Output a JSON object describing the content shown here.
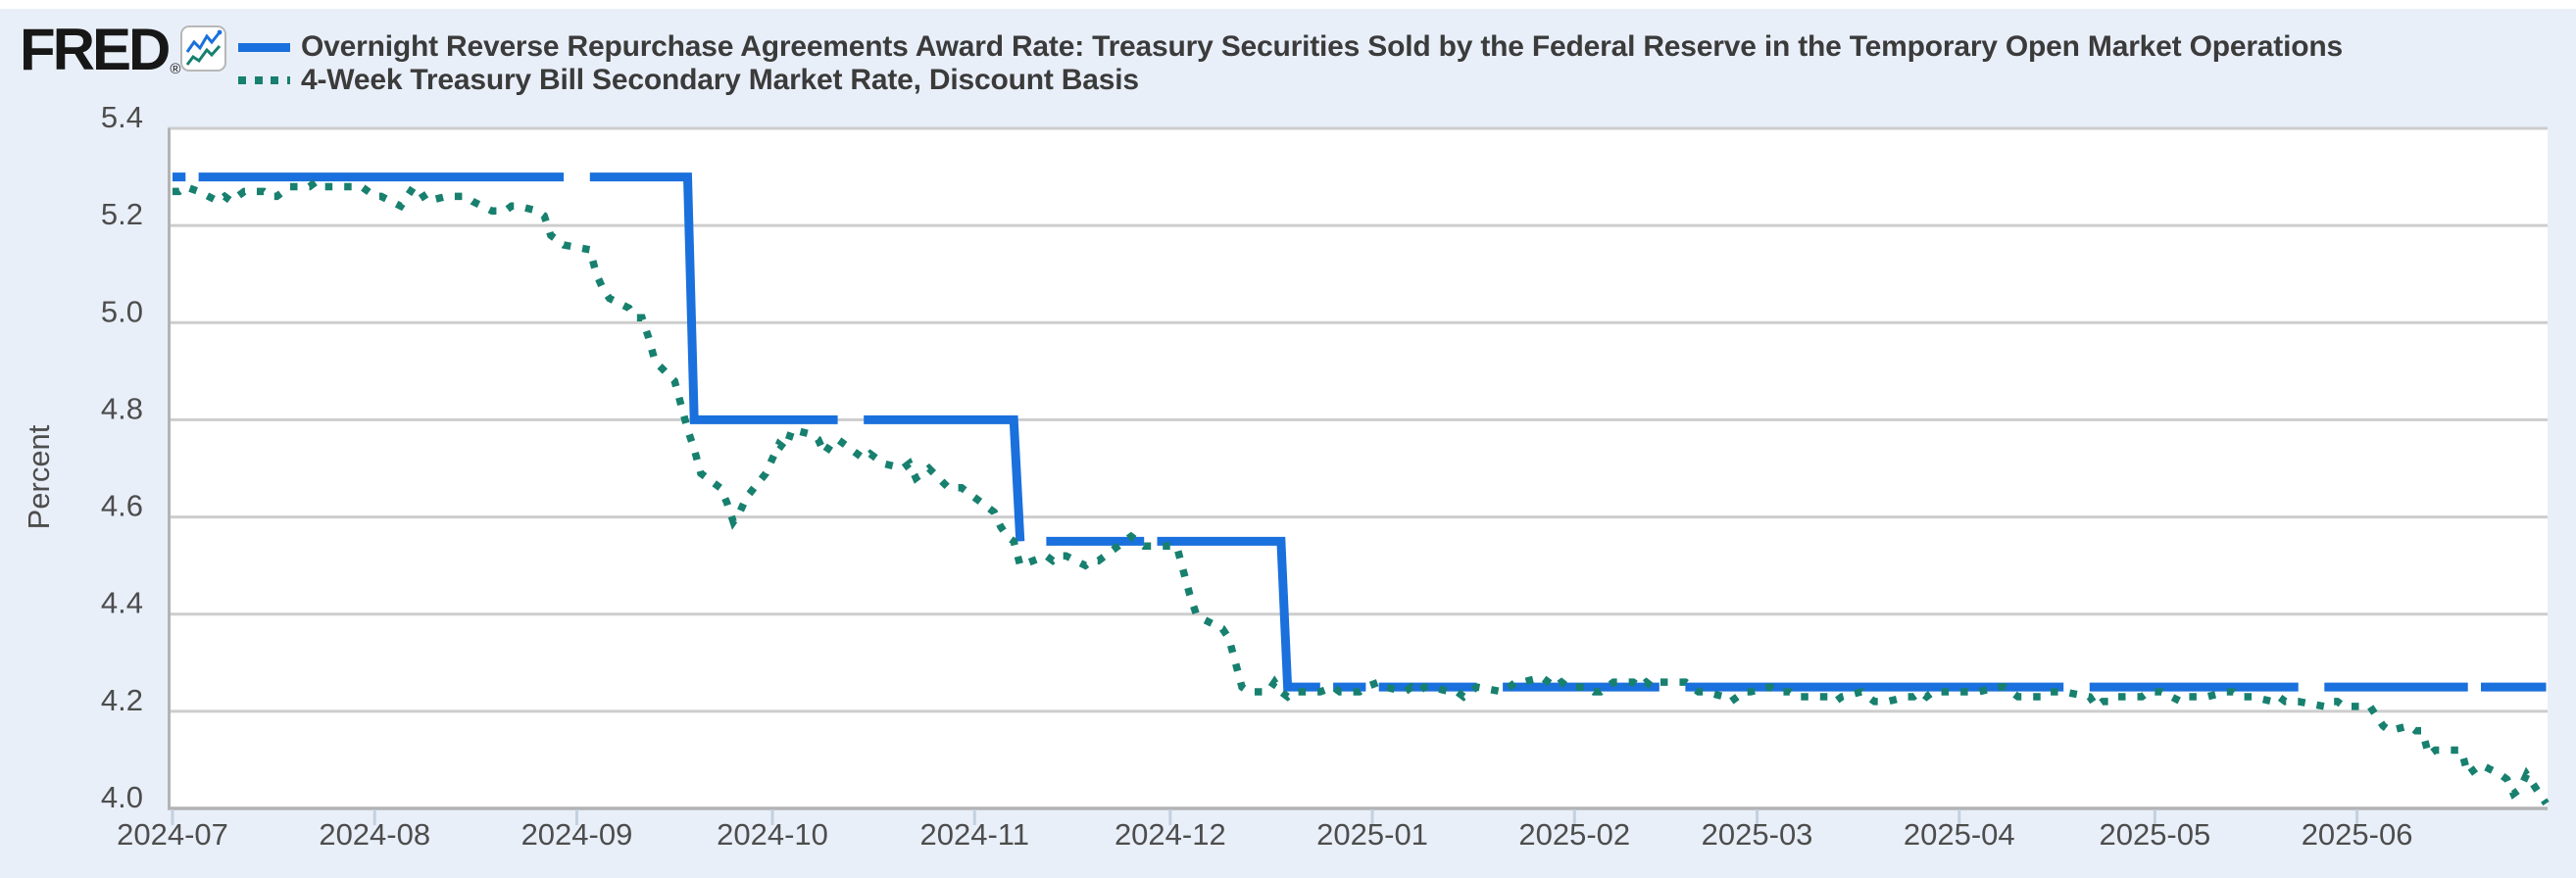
{
  "header": {
    "logo_text": "FRED",
    "registered_mark": "®"
  },
  "legend": [
    {
      "label": "Overnight Reverse Repurchase Agreements Award Rate: Treasury Securities Sold by the Federal Reserve in the Temporary Open Market Operations",
      "color": "#1a70dc",
      "style": "solid"
    },
    {
      "label": "4-Week Treasury Bill Secondary Market Rate, Discount Basis",
      "color": "#17806e",
      "style": "dotted"
    }
  ],
  "colors": {
    "background": "#e9eff9",
    "plot_background": "#ffffff",
    "gridline": "#cdcdcd",
    "axis_border": "#b3b3b3",
    "tick_mark": "#c3d0e1",
    "axis_text": "#4d4d4d",
    "series_blue": "#1a70dc",
    "series_teal": "#17806e"
  },
  "chart_data": {
    "type": "line",
    "title": "",
    "xlabel": "",
    "ylabel": "Percent",
    "ylim": [
      4.0,
      5.4
    ],
    "grid": true,
    "legend_position": "top-left",
    "x_unit": "days since 2024-07-01 (business-day series)",
    "x_start_date": "2024-07-01",
    "x_end_date": "2025-06-30",
    "y_ticks": [
      {
        "v": 4.0,
        "label": "4.0"
      },
      {
        "v": 4.2,
        "label": "4.2"
      },
      {
        "v": 4.4,
        "label": "4.4"
      },
      {
        "v": 4.6,
        "label": "4.6"
      },
      {
        "v": 4.8,
        "label": "4.8"
      },
      {
        "v": 5.0,
        "label": "5.0"
      },
      {
        "v": 5.2,
        "label": "5.2"
      },
      {
        "v": 5.4,
        "label": "5.4"
      }
    ],
    "x_ticks": [
      {
        "d": 0,
        "label": "2024-07"
      },
      {
        "d": 31,
        "label": "2024-08"
      },
      {
        "d": 62,
        "label": "2024-09"
      },
      {
        "d": 92,
        "label": "2024-10"
      },
      {
        "d": 123,
        "label": "2024-11"
      },
      {
        "d": 153,
        "label": "2024-12"
      },
      {
        "d": 184,
        "label": "2025-01"
      },
      {
        "d": 215,
        "label": "2025-02"
      },
      {
        "d": 243,
        "label": "2025-03"
      },
      {
        "d": 274,
        "label": "2025-04"
      },
      {
        "d": 304,
        "label": "2025-05"
      },
      {
        "d": 335,
        "label": "2025-06"
      }
    ],
    "series": [
      {
        "name": "Overnight Reverse Repurchase Agreements Award Rate: Treasury Securities Sold by the Federal Reserve in the Temporary Open Market Operations",
        "color": "#1a70dc",
        "style": "solid",
        "line_width": 9,
        "values_note": "step series 5.30 to 2024-09-18, 4.80 to 2024-11-07, 4.55 to 2024-12-18, 4.25 after; gaps are market holidays",
        "segments": [
          [
            [
              0,
              5.3
            ],
            [
              2,
              5.3
            ]
          ],
          [
            [
              4,
              5.3
            ],
            [
              60,
              5.3
            ]
          ],
          [
            [
              64,
              5.3
            ],
            [
              79,
              5.3
            ],
            [
              80,
              4.8
            ],
            [
              102,
              4.8
            ]
          ],
          [
            [
              106,
              4.8
            ],
            [
              129,
              4.8
            ],
            [
              130,
              4.55
            ]
          ],
          [
            [
              134,
              4.55
            ],
            [
              149,
              4.55
            ]
          ],
          [
            [
              151,
              4.55
            ],
            [
              170,
              4.55
            ],
            [
              171,
              4.25
            ],
            [
              176,
              4.25
            ]
          ],
          [
            [
              178,
              4.25
            ],
            [
              183,
              4.25
            ]
          ],
          [
            [
              185,
              4.25
            ],
            [
              200,
              4.25
            ]
          ],
          [
            [
              204,
              4.25
            ],
            [
              228,
              4.25
            ]
          ],
          [
            [
              232,
              4.25
            ],
            [
              290,
              4.25
            ]
          ],
          [
            [
              294,
              4.25
            ],
            [
              326,
              4.25
            ]
          ],
          [
            [
              330,
              4.25
            ],
            [
              352,
              4.25
            ]
          ],
          [
            [
              354,
              4.25
            ],
            [
              364,
              4.25
            ]
          ]
        ]
      },
      {
        "name": "4-Week Treasury Bill Secondary Market Rate, Discount Basis",
        "color": "#17806e",
        "style": "dotted",
        "dot_size": 7.5,
        "points": [
          [
            0,
            5.27
          ],
          [
            1,
            5.27
          ],
          [
            2,
            5.28
          ],
          [
            4,
            5.27
          ],
          [
            7,
            5.25
          ],
          [
            8,
            5.26
          ],
          [
            9,
            5.25
          ],
          [
            10,
            5.26
          ],
          [
            11,
            5.27
          ],
          [
            14,
            5.27
          ],
          [
            15,
            5.26
          ],
          [
            16,
            5.26
          ],
          [
            17,
            5.27
          ],
          [
            18,
            5.28
          ],
          [
            21,
            5.28
          ],
          [
            22,
            5.29
          ],
          [
            23,
            5.28
          ],
          [
            24,
            5.28
          ],
          [
            25,
            5.28
          ],
          [
            28,
            5.28
          ],
          [
            29,
            5.28
          ],
          [
            30,
            5.27
          ],
          [
            31,
            5.26
          ],
          [
            32,
            5.26
          ],
          [
            35,
            5.24
          ],
          [
            36,
            5.26
          ],
          [
            37,
            5.28
          ],
          [
            38,
            5.27
          ],
          [
            39,
            5.25
          ],
          [
            42,
            5.26
          ],
          [
            43,
            5.26
          ],
          [
            44,
            5.26
          ],
          [
            45,
            5.26
          ],
          [
            46,
            5.25
          ],
          [
            49,
            5.23
          ],
          [
            50,
            5.23
          ],
          [
            51,
            5.23
          ],
          [
            52,
            5.24
          ],
          [
            53,
            5.24
          ],
          [
            56,
            5.23
          ],
          [
            57,
            5.22
          ],
          [
            58,
            5.18
          ],
          [
            59,
            5.17
          ],
          [
            60,
            5.16
          ],
          [
            64,
            5.15
          ],
          [
            65,
            5.1
          ],
          [
            66,
            5.07
          ],
          [
            67,
            5.05
          ],
          [
            70,
            5.03
          ],
          [
            71,
            5.01
          ],
          [
            72,
            5.01
          ],
          [
            73,
            4.97
          ],
          [
            74,
            4.92
          ],
          [
            77,
            4.88
          ],
          [
            78,
            4.83
          ],
          [
            79,
            4.78
          ],
          [
            80,
            4.74
          ],
          [
            81,
            4.69
          ],
          [
            84,
            4.66
          ],
          [
            85,
            4.63
          ],
          [
            86,
            4.59
          ],
          [
            87,
            4.61
          ],
          [
            88,
            4.64
          ],
          [
            91,
            4.69
          ],
          [
            92,
            4.72
          ],
          [
            93,
            4.75
          ],
          [
            94,
            4.74
          ],
          [
            95,
            4.78
          ],
          [
            98,
            4.77
          ],
          [
            99,
            4.76
          ],
          [
            100,
            4.73
          ],
          [
            101,
            4.75
          ],
          [
            102,
            4.76
          ],
          [
            106,
            4.72
          ],
          [
            107,
            4.73
          ],
          [
            108,
            4.72
          ],
          [
            109,
            4.71
          ],
          [
            112,
            4.7
          ],
          [
            113,
            4.71
          ],
          [
            114,
            4.68
          ],
          [
            115,
            4.69
          ],
          [
            116,
            4.7
          ],
          [
            119,
            4.66
          ],
          [
            120,
            4.66
          ],
          [
            121,
            4.66
          ],
          [
            122,
            4.65
          ],
          [
            123,
            4.64
          ],
          [
            126,
            4.61
          ],
          [
            127,
            4.58
          ],
          [
            128,
            4.56
          ],
          [
            129,
            4.55
          ],
          [
            130,
            4.5
          ],
          [
            134,
            4.52
          ],
          [
            135,
            4.51
          ],
          [
            136,
            4.52
          ],
          [
            137,
            4.52
          ],
          [
            140,
            4.5
          ],
          [
            141,
            4.51
          ],
          [
            142,
            4.51
          ],
          [
            143,
            4.52
          ],
          [
            144,
            4.53
          ],
          [
            147,
            4.56
          ],
          [
            148,
            4.55
          ],
          [
            149,
            4.54
          ],
          [
            151,
            4.54
          ],
          [
            154,
            4.54
          ],
          [
            155,
            4.49
          ],
          [
            156,
            4.44
          ],
          [
            157,
            4.4
          ],
          [
            158,
            4.39
          ],
          [
            161,
            4.37
          ],
          [
            162,
            4.35
          ],
          [
            163,
            4.3
          ],
          [
            164,
            4.25
          ],
          [
            165,
            4.24
          ],
          [
            168,
            4.24
          ],
          [
            169,
            4.26
          ],
          [
            170,
            4.24
          ],
          [
            171,
            4.23
          ],
          [
            172,
            4.24
          ],
          [
            175,
            4.24
          ],
          [
            176,
            4.24
          ],
          [
            178,
            4.25
          ],
          [
            179,
            4.24
          ],
          [
            182,
            4.24
          ],
          [
            183,
            4.25
          ],
          [
            185,
            4.26
          ],
          [
            186,
            4.25
          ],
          [
            189,
            4.24
          ],
          [
            190,
            4.25
          ],
          [
            191,
            4.24
          ],
          [
            192,
            4.25
          ],
          [
            193,
            4.25
          ],
          [
            196,
            4.24
          ],
          [
            197,
            4.24
          ],
          [
            198,
            4.23
          ],
          [
            199,
            4.24
          ],
          [
            200,
            4.25
          ],
          [
            204,
            4.24
          ],
          [
            205,
            4.25
          ],
          [
            206,
            4.26
          ],
          [
            207,
            4.26
          ],
          [
            210,
            4.27
          ],
          [
            211,
            4.26
          ],
          [
            212,
            4.25
          ],
          [
            213,
            4.26
          ],
          [
            214,
            4.25
          ],
          [
            217,
            4.25
          ],
          [
            218,
            4.24
          ],
          [
            219,
            4.24
          ],
          [
            220,
            4.25
          ],
          [
            221,
            4.26
          ],
          [
            224,
            4.26
          ],
          [
            225,
            4.25
          ],
          [
            226,
            4.26
          ],
          [
            227,
            4.25
          ],
          [
            228,
            4.26
          ],
          [
            232,
            4.26
          ],
          [
            233,
            4.25
          ],
          [
            234,
            4.24
          ],
          [
            235,
            4.24
          ],
          [
            238,
            4.23
          ],
          [
            239,
            4.22
          ],
          [
            240,
            4.23
          ],
          [
            241,
            4.24
          ],
          [
            242,
            4.24
          ],
          [
            245,
            4.25
          ],
          [
            246,
            4.24
          ],
          [
            247,
            4.24
          ],
          [
            248,
            4.24
          ],
          [
            249,
            4.23
          ],
          [
            252,
            4.23
          ],
          [
            253,
            4.23
          ],
          [
            254,
            4.23
          ],
          [
            255,
            4.22
          ],
          [
            256,
            4.23
          ],
          [
            259,
            4.24
          ],
          [
            260,
            4.23
          ],
          [
            261,
            4.22
          ],
          [
            262,
            4.22
          ],
          [
            263,
            4.22
          ],
          [
            266,
            4.23
          ],
          [
            267,
            4.23
          ],
          [
            268,
            4.24
          ],
          [
            269,
            4.23
          ],
          [
            270,
            4.24
          ],
          [
            273,
            4.24
          ],
          [
            274,
            4.24
          ],
          [
            275,
            4.24
          ],
          [
            276,
            4.24
          ],
          [
            277,
            4.24
          ],
          [
            280,
            4.25
          ],
          [
            281,
            4.25
          ],
          [
            282,
            4.24
          ],
          [
            283,
            4.23
          ],
          [
            284,
            4.23
          ],
          [
            287,
            4.23
          ],
          [
            288,
            4.24
          ],
          [
            289,
            4.24
          ],
          [
            290,
            4.24
          ],
          [
            294,
            4.23
          ],
          [
            295,
            4.21
          ],
          [
            296,
            4.22
          ],
          [
            297,
            4.22
          ],
          [
            298,
            4.23
          ],
          [
            301,
            4.23
          ],
          [
            302,
            4.23
          ],
          [
            303,
            4.24
          ],
          [
            304,
            4.24
          ],
          [
            305,
            4.24
          ],
          [
            308,
            4.22
          ],
          [
            309,
            4.23
          ],
          [
            310,
            4.23
          ],
          [
            311,
            4.23
          ],
          [
            312,
            4.23
          ],
          [
            315,
            4.24
          ],
          [
            316,
            4.24
          ],
          [
            317,
            4.23
          ],
          [
            318,
            4.23
          ],
          [
            319,
            4.23
          ],
          [
            322,
            4.22
          ],
          [
            323,
            4.23
          ],
          [
            324,
            4.22
          ],
          [
            325,
            4.22
          ],
          [
            326,
            4.22
          ],
          [
            330,
            4.21
          ],
          [
            331,
            4.22
          ],
          [
            332,
            4.22
          ],
          [
            333,
            4.21
          ],
          [
            336,
            4.21
          ],
          [
            337,
            4.21
          ],
          [
            338,
            4.19
          ],
          [
            339,
            4.17
          ],
          [
            340,
            4.16
          ],
          [
            343,
            4.17
          ],
          [
            344,
            4.16
          ],
          [
            345,
            4.16
          ],
          [
            346,
            4.11
          ],
          [
            347,
            4.12
          ],
          [
            350,
            4.12
          ],
          [
            351,
            4.12
          ],
          [
            352,
            4.07
          ],
          [
            354,
            4.09
          ],
          [
            357,
            4.07
          ],
          [
            358,
            4.06
          ],
          [
            359,
            4.03
          ],
          [
            360,
            4.04
          ],
          [
            361,
            4.07
          ],
          [
            364,
            4.01
          ]
        ]
      }
    ]
  }
}
